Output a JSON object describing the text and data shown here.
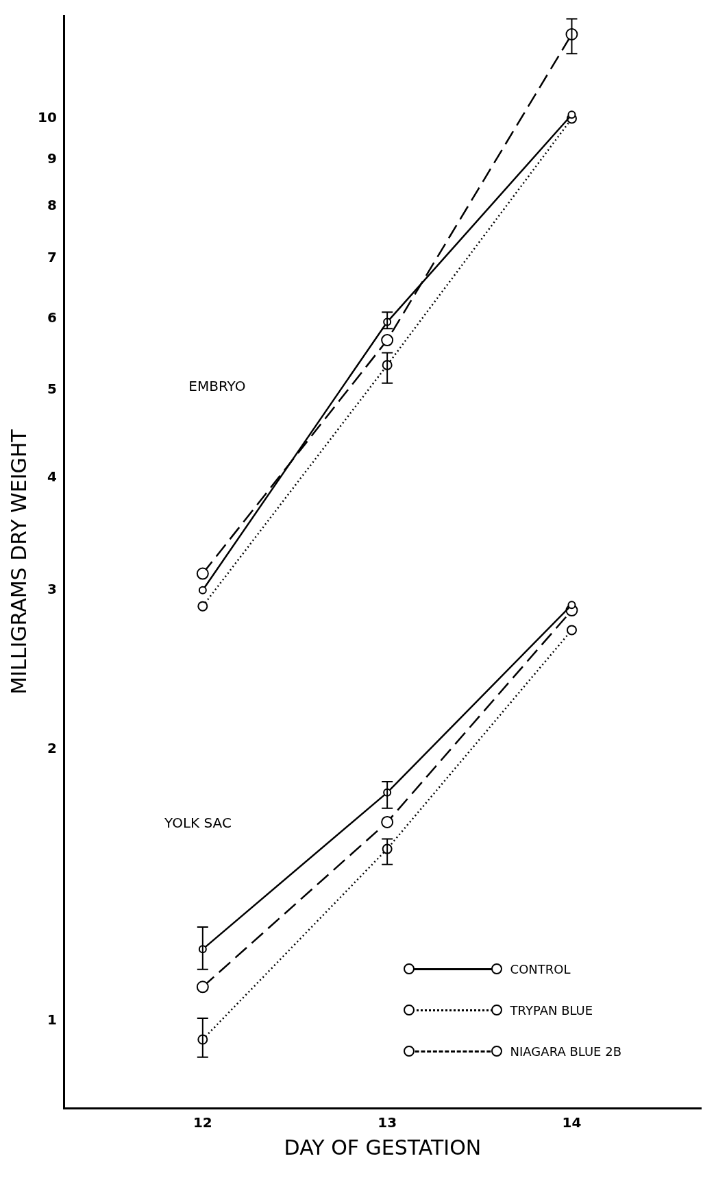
{
  "chart_data": {
    "type": "line",
    "xlabel": "DAY OF GESTATION",
    "ylabel": "MILLIGRAMS DRY WEIGHT",
    "log": "y",
    "xlim": [
      11.25,
      14.7
    ],
    "xticks": [
      12,
      13,
      14
    ],
    "ylim": [
      0.8,
      13
    ],
    "yticks": [
      1,
      2,
      3,
      4,
      5,
      6,
      7,
      8,
      9,
      10
    ],
    "grid": false,
    "legend": "bottom right",
    "marker": "circle",
    "annotations": [
      "EMBRYO",
      "YOLK SAC"
    ],
    "series": [
      {
        "name": "CONTROL",
        "color": "#000000",
        "line_style": "solid",
        "x": [
          12,
          13,
          14
        ],
        "values": [
          3.0,
          5.95,
          10.1
        ],
        "errors": [
          null,
          [
            5.85,
            6.1
          ],
          null
        ]
      },
      {
        "name": "TRYPAN BLUE",
        "color": "#000000",
        "line_style": "dotted",
        "x": [
          12,
          13,
          14
        ],
        "values": [
          2.88,
          5.33,
          10.0
        ],
        "errors": [
          null,
          [
            5.09,
            5.5
          ],
          null
        ]
      },
      {
        "name": "NIAGARA BLUE 2B",
        "color": "#000000",
        "line_style": "dashed",
        "x": [
          12,
          13,
          14
        ],
        "values": [
          3.13,
          5.68,
          12.4
        ],
        "errors": [
          null,
          null,
          [
            11.8,
            12.9
          ]
        ]
      },
      {
        "color": "#000000",
        "line_style": "solid",
        "x": [
          12,
          13,
          14
        ],
        "values": [
          1.2,
          1.79,
          2.89
        ],
        "errors": [
          [
            1.14,
            1.27
          ],
          [
            1.72,
            1.84
          ],
          null
        ]
      },
      {
        "color": "#000000",
        "line_style": "dotted",
        "x": [
          12,
          13,
          14
        ],
        "values": [
          0.953,
          1.55,
          2.71
        ],
        "errors": [
          [
            0.911,
            1.006
          ],
          [
            1.49,
            1.59
          ],
          null
        ]
      },
      {
        "color": "#000000",
        "line_style": "dashed",
        "x": [
          12,
          13,
          14
        ],
        "values": [
          1.09,
          1.66,
          2.85
        ]
      }
    ]
  }
}
